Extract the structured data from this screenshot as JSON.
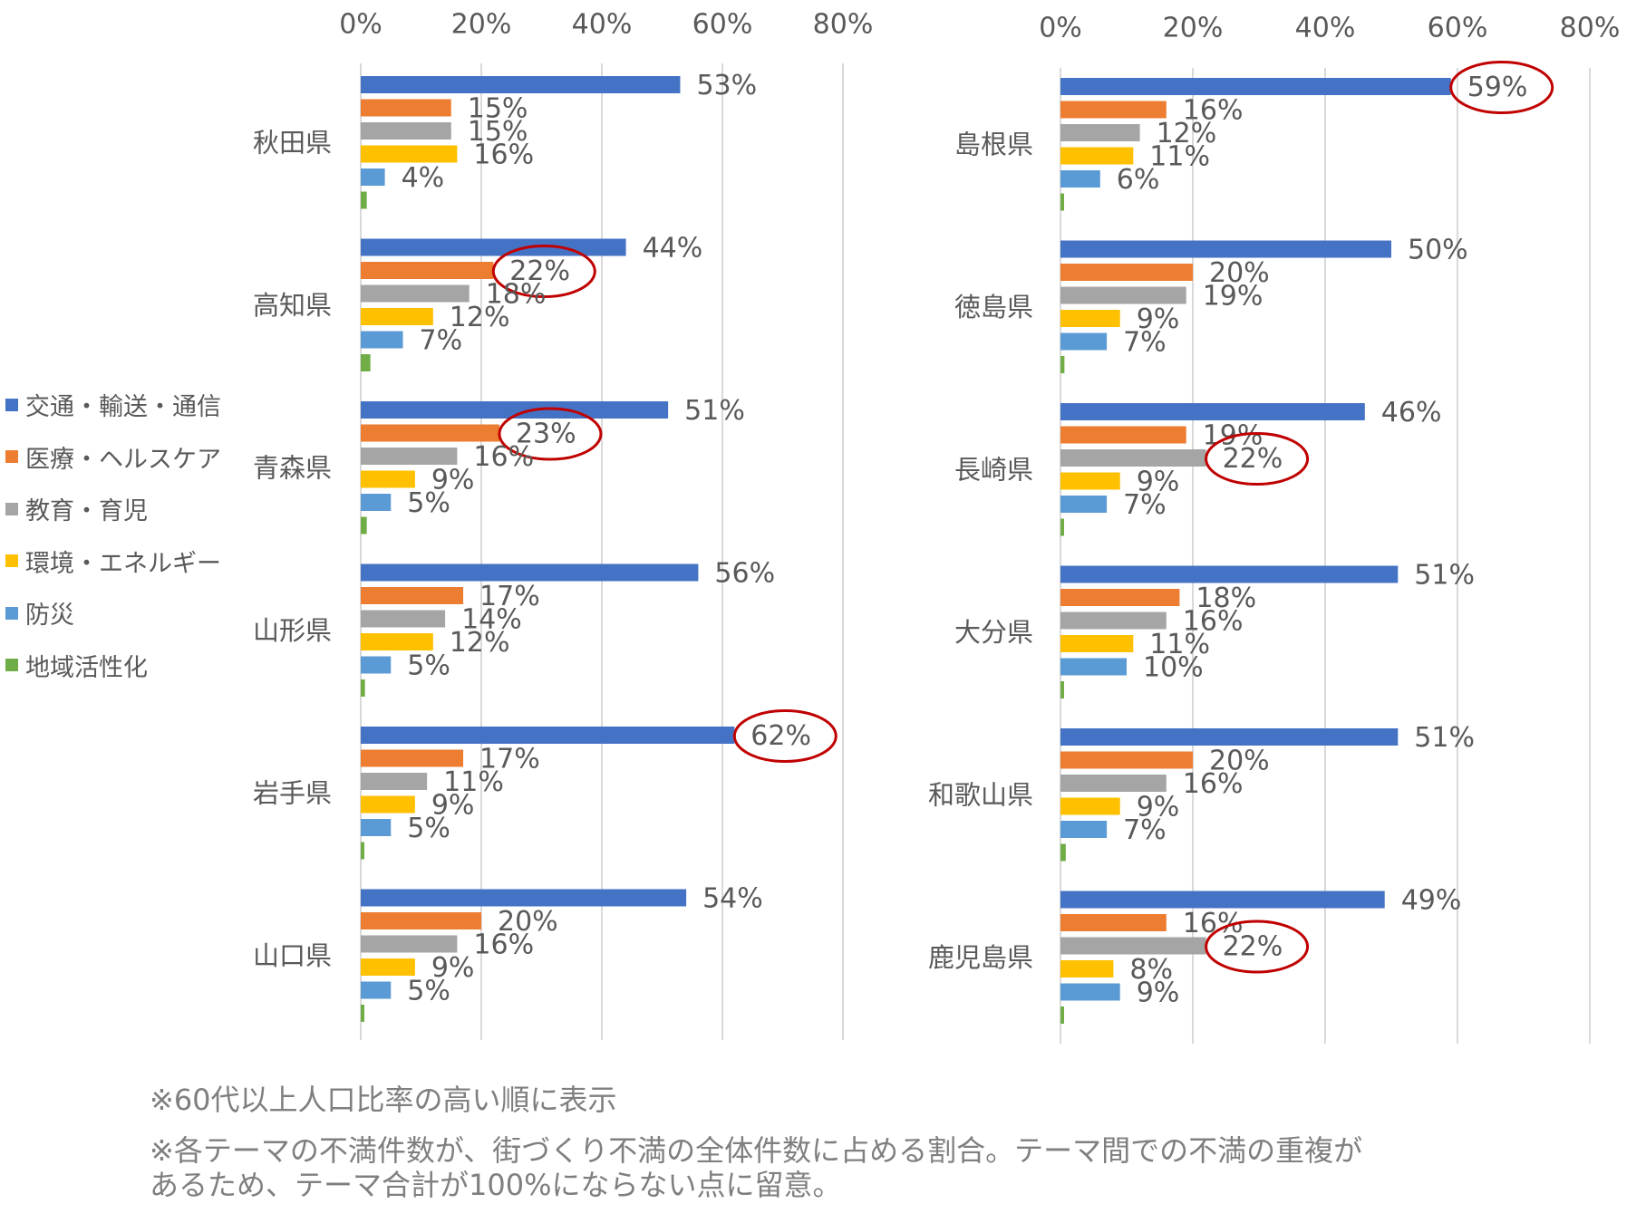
{
  "chart_data": [
    {
      "type": "bar",
      "orientation": "horizontal",
      "xlim": [
        0,
        80
      ],
      "ticks": [
        "0%",
        "20%",
        "40%",
        "60%",
        "80%"
      ],
      "grid": true,
      "categories": [
        "秋田県",
        "高知県",
        "青森県",
        "山形県",
        "岩手県",
        "山口県"
      ],
      "series": [
        {
          "name": "交通・輸送・通信",
          "color": "#4472C4",
          "values": [
            53,
            44,
            51,
            56,
            62,
            54
          ]
        },
        {
          "name": "医療・ヘルスケア",
          "color": "#ED7D31",
          "values": [
            15,
            22,
            23,
            17,
            17,
            20
          ]
        },
        {
          "name": "教育・育児",
          "color": "#A5A5A5",
          "values": [
            15,
            18,
            16,
            14,
            11,
            16
          ]
        },
        {
          "name": "環境・エネルギー",
          "color": "#FFC000",
          "values": [
            16,
            12,
            9,
            12,
            9,
            9
          ]
        },
        {
          "name": "防災",
          "color": "#5B9BD5",
          "values": [
            4,
            7,
            5,
            5,
            5,
            5
          ]
        },
        {
          "name": "地域活性化",
          "color": "#70AD47",
          "values": [
            1,
            1.6,
            1,
            0.7,
            0.5,
            0.6
          ]
        }
      ],
      "value_labels_hidden_series": [
        "地域活性化"
      ],
      "highlighted": [
        {
          "category": "高知県",
          "series": "医療・ヘルスケア"
        },
        {
          "category": "青森県",
          "series": "医療・ヘルスケア"
        },
        {
          "category": "岩手県",
          "series": "交通・輸送・通信"
        }
      ]
    },
    {
      "type": "bar",
      "orientation": "horizontal",
      "xlim": [
        0,
        80
      ],
      "ticks": [
        "0%",
        "20%",
        "40%",
        "60%",
        "80%"
      ],
      "grid": true,
      "categories": [
        "島根県",
        "徳島県",
        "長崎県",
        "大分県",
        "和歌山県",
        "鹿児島県"
      ],
      "series": [
        {
          "name": "交通・輸送・通信",
          "color": "#4472C4",
          "values": [
            59,
            50,
            46,
            51,
            51,
            49
          ]
        },
        {
          "name": "医療・ヘルスケア",
          "color": "#ED7D31",
          "values": [
            16,
            20,
            19,
            18,
            20,
            16
          ]
        },
        {
          "name": "教育・育児",
          "color": "#A5A5A5",
          "values": [
            12,
            19,
            22,
            16,
            16,
            22
          ]
        },
        {
          "name": "環境・エネルギー",
          "color": "#FFC000",
          "values": [
            11,
            9,
            9,
            11,
            9,
            8
          ]
        },
        {
          "name": "防災",
          "color": "#5B9BD5",
          "values": [
            6,
            7,
            7,
            10,
            7,
            9
          ]
        },
        {
          "name": "地域活性化",
          "color": "#70AD47",
          "values": [
            0.5,
            0.6,
            0.5,
            0.5,
            0.8,
            0.5
          ]
        }
      ],
      "value_labels_hidden_series": [
        "地域活性化"
      ],
      "highlighted": [
        {
          "category": "島根県",
          "series": "交通・輸送・通信"
        },
        {
          "category": "長崎県",
          "series": "教育・育児"
        },
        {
          "category": "鹿児島県",
          "series": "教育・育児"
        }
      ]
    }
  ],
  "legend": [
    {
      "label": "交通・輸送・通信",
      "color": "#4472C4"
    },
    {
      "label": "医療・ヘルスケア",
      "color": "#ED7D31"
    },
    {
      "label": "教育・育児",
      "color": "#A5A5A5"
    },
    {
      "label": "環境・エネルギー",
      "color": "#FFC000"
    },
    {
      "label": "防災",
      "color": "#5B9BD5"
    },
    {
      "label": "地域活性化",
      "color": "#70AD47"
    }
  ],
  "notes": [
    "※60代以上人口比率の高い順に表示",
    "※各テーマの不満件数が、街づくり不満の全体件数に占める割合。テーマ間での不満の重複が\nあるため、テーマ合計が100%にならない点に留意。"
  ],
  "highlight_color": "#C00000"
}
